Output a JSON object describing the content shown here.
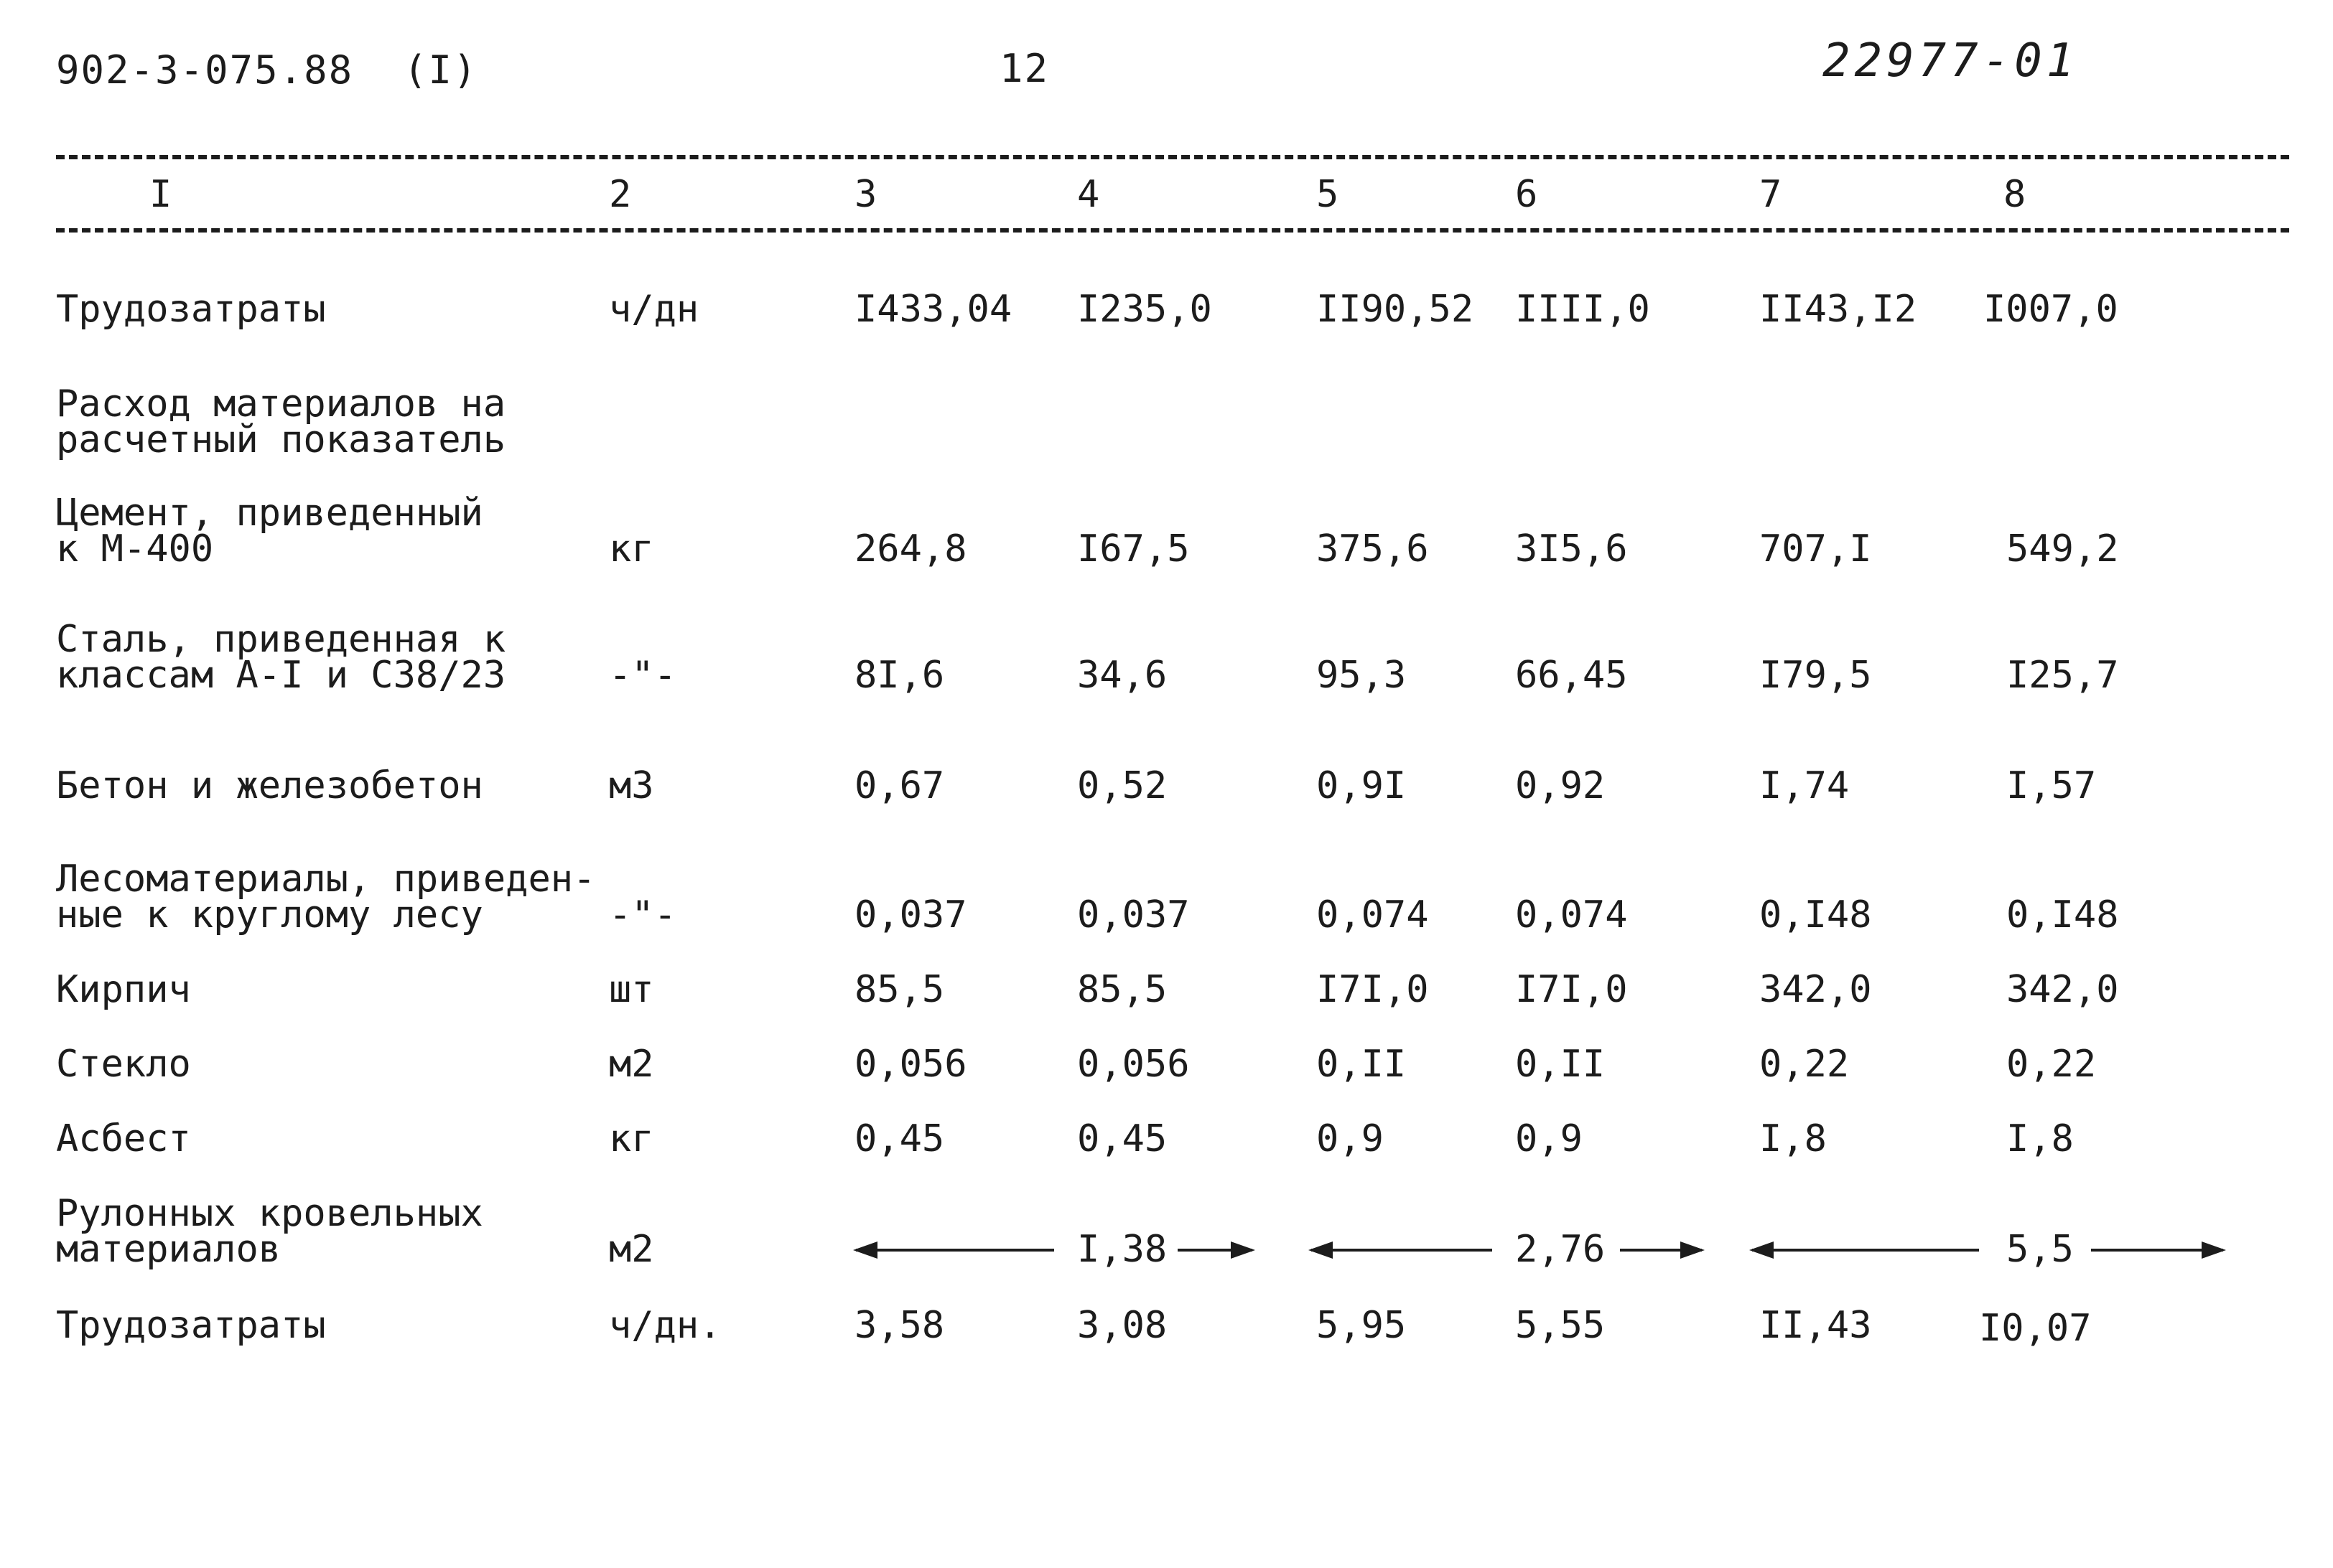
{
  "header": {
    "doc_code": "902-3-075.88",
    "part": "(I)",
    "page_number": "12",
    "stamp": "22977-01"
  },
  "column_numbers": [
    "I",
    "2",
    "3",
    "4",
    "5",
    "6",
    "7",
    "8"
  ],
  "rows": {
    "labor1": {
      "label": "Трудозатраты",
      "unit": "ч/дн",
      "values": [
        "I433,04",
        "I235,0",
        "II90,52",
        "IIII,0",
        "II43,I2",
        "I007,0"
      ]
    },
    "section": {
      "label": "Расход материалов на\nрасчетный показатель"
    },
    "cement": {
      "label": "Цемент, приведенный\nк М-400",
      "unit": "кг",
      "values": [
        "264,8",
        "I67,5",
        "375,6",
        "3I5,6",
        "707,I",
        "549,2"
      ]
    },
    "steel": {
      "label": "Сталь, приведенная к\nклассам А-I и С38/23",
      "unit": "-\"-",
      "values": [
        "8I,6",
        "34,6",
        "95,3",
        "66,45",
        "I79,5",
        "I25,7"
      ]
    },
    "concrete": {
      "label": "Бетон и железобетон",
      "unit": "м3",
      "values": [
        "0,67",
        "0,52",
        "0,9I",
        "0,92",
        "I,74",
        "I,57"
      ]
    },
    "timber": {
      "label": "Лесоматериалы, приведен-\nные к круглому лесу",
      "unit": "-\"-",
      "values": [
        "0,037",
        "0,037",
        "0,074",
        "0,074",
        "0,I48",
        "0,I48"
      ]
    },
    "brick": {
      "label": "Кирпич",
      "unit": "шт",
      "values": [
        "85,5",
        "85,5",
        "I7I,0",
        "I7I,0",
        "342,0",
        "342,0"
      ]
    },
    "glass": {
      "label": "Стекло",
      "unit": "м2",
      "values": [
        "0,056",
        "0,056",
        "0,II",
        "0,II",
        "0,22",
        "0,22"
      ]
    },
    "asbestos": {
      "label": "Асбест",
      "unit": "кг",
      "values": [
        "0,45",
        "0,45",
        "0,9",
        "0,9",
        "I,8",
        "I,8"
      ]
    },
    "roofing": {
      "label": "Рулонных кровельных\nматериалов",
      "unit": "м2",
      "spans": [
        "I,38",
        "2,76",
        "5,5"
      ]
    },
    "labor2": {
      "label": "Трудозатраты",
      "unit": "ч/дн.",
      "values": [
        "3,58",
        "3,08",
        "5,95",
        "5,55",
        "II,43",
        "I0,07"
      ]
    }
  }
}
